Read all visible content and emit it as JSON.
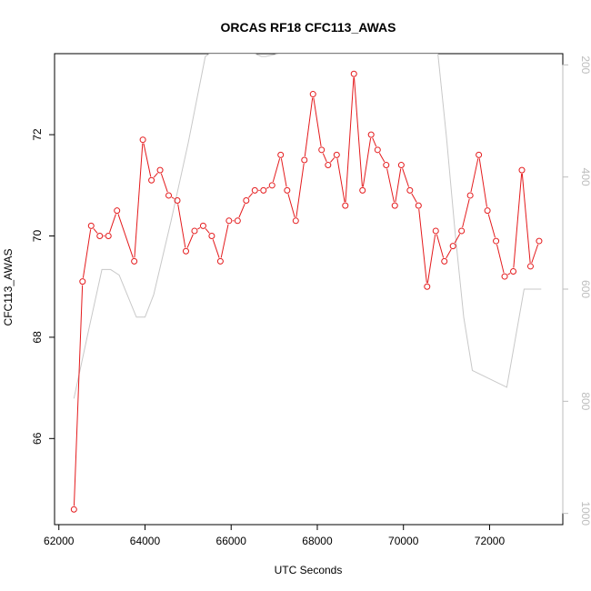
{
  "chart_data": {
    "type": "line",
    "title": "ORCAS RF18 CFC113_AWAS",
    "xlabel": "UTC Seconds",
    "ylabel": "CFC113_AWAS",
    "xlim": [
      61900,
      73700
    ],
    "ylim": [
      64.3,
      73.6
    ],
    "xticks": [
      62000,
      64000,
      66000,
      68000,
      70000,
      72000
    ],
    "yticks": [
      66,
      68,
      70,
      72
    ],
    "y2lim": [
      1020,
      180
    ],
    "y2ticks": [
      200,
      400,
      600,
      800,
      1000
    ],
    "grid": false,
    "series": [
      {
        "name": "",
        "color": "#e41a1c",
        "x": [
          62350,
          62550,
          62750,
          62950,
          63150,
          63350,
          63750,
          63950,
          64150,
          64350,
          64550,
          64750,
          64950,
          65150,
          65350,
          65550,
          65750,
          65950,
          66150,
          66350,
          66550,
          66750,
          66950,
          67150,
          67300,
          67500,
          67700,
          67900,
          68100,
          68250,
          68450,
          68650,
          68850,
          69050,
          69250,
          69400,
          69600,
          69800,
          69950,
          70150,
          70350,
          70550,
          70750,
          70950,
          71150,
          71350,
          71550,
          71750,
          71950,
          72150,
          72350,
          72550,
          72750,
          72950,
          73150
        ],
        "y": [
          64.6,
          69.1,
          70.2,
          70.0,
          70.0,
          70.5,
          69.5,
          71.9,
          71.1,
          71.3,
          70.8,
          70.7,
          69.7,
          70.1,
          70.2,
          70.0,
          69.5,
          70.3,
          70.3,
          70.7,
          70.9,
          70.9,
          71.0,
          71.6,
          70.9,
          70.3,
          71.5,
          72.8,
          71.7,
          71.4,
          71.6,
          70.6,
          73.2,
          70.9,
          72.0,
          71.7,
          71.4,
          70.6,
          71.4,
          70.9,
          70.6,
          69.0,
          70.1,
          69.5,
          69.8,
          70.1,
          70.8,
          71.6,
          70.5,
          69.9,
          69.2,
          69.3,
          71.3,
          69.4,
          69.9
        ]
      },
      {
        "name": "",
        "color": "#c8c8c8",
        "axis": "right",
        "x": [
          62350,
          62700,
          63000,
          63200,
          63400,
          63800,
          64000,
          64200,
          64600,
          65000,
          65400,
          65500,
          66200,
          66550,
          66700,
          66800,
          67100,
          67800,
          68700,
          70800,
          71000,
          71200,
          71400,
          71600,
          72400,
          72800,
          73200
        ],
        "y": [
          795,
          670,
          565,
          565,
          575,
          650,
          650,
          610,
          480,
          340,
          185,
          180,
          180,
          180,
          185,
          185,
          180,
          180,
          180,
          180,
          330,
          500,
          650,
          745,
          775,
          600,
          600
        ]
      }
    ]
  }
}
